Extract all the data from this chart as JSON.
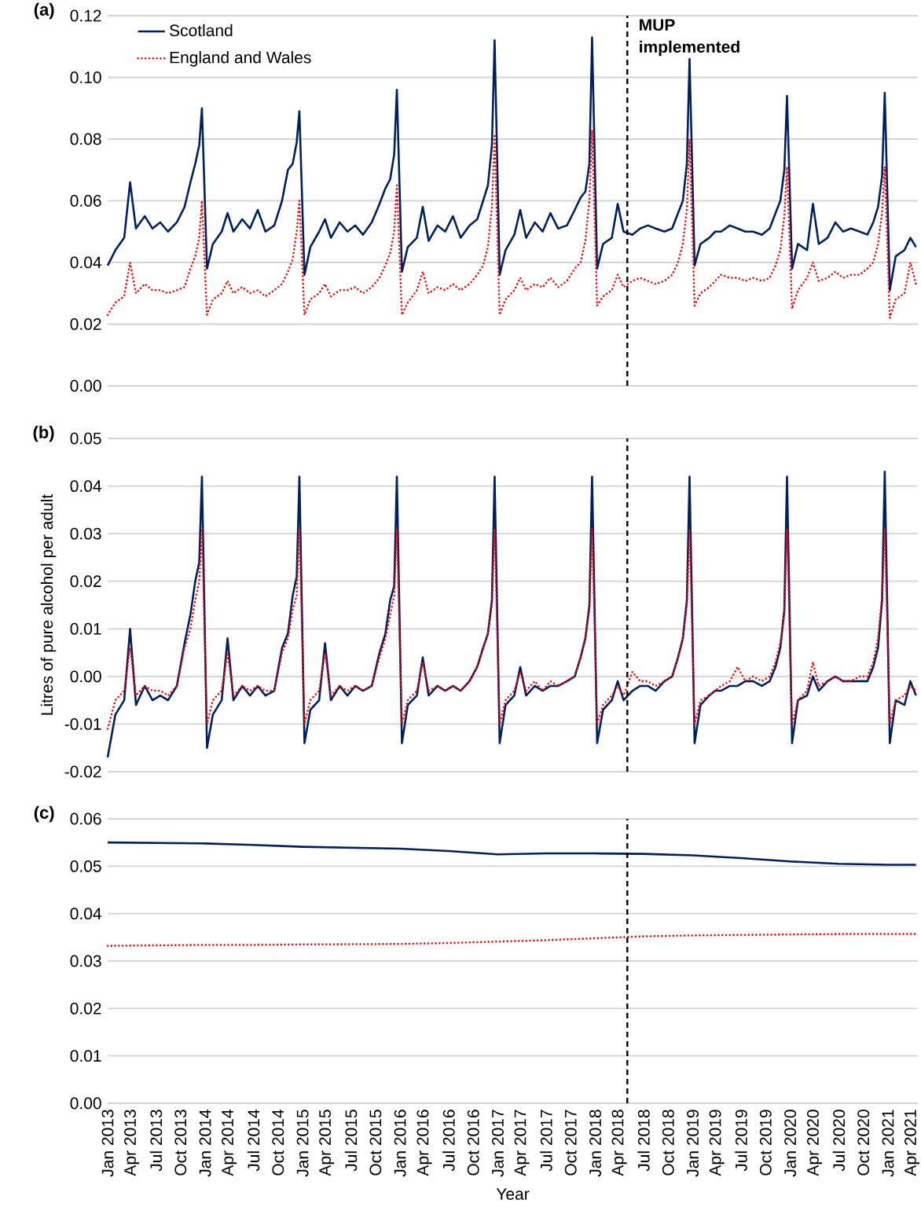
{
  "chart_data": [
    {
      "type": "line",
      "title": "(a)",
      "legend": "top left",
      "grid": "y",
      "tick_labels": "y",
      "xlim": [
        "2013-01-01",
        "2021-04-23"
      ],
      "ylim": [
        0,
        0.12
      ],
      "yticks": [
        {
          "value": 0,
          "label": "0.00"
        },
        {
          "value": 0.02,
          "label": "0.02"
        },
        {
          "value": 0.04,
          "label": "0.04"
        },
        {
          "value": 0.06,
          "label": "0.06"
        },
        {
          "value": 0.08,
          "label": "0.08"
        },
        {
          "value": 0.1,
          "label": "0.10"
        },
        {
          "value": 0.12,
          "label": "0.12"
        }
      ],
      "ref_lines": [
        {
          "axis": "x",
          "value": "2018-05-01",
          "label": "MUP implemented",
          "color": "#000000",
          "line_style": "dashed"
        }
      ],
      "x": [
        "2013-01-01",
        "2013-01-30",
        "2013-03-04",
        "2013-03-26",
        "2013-04-17",
        "2013-05-20",
        "2013-06-18",
        "2013-07-17",
        "2013-08-15",
        "2013-09-17",
        "2013-10-16",
        "2013-11-07",
        "2013-11-25",
        "2013-12-10",
        "2013-12-20",
        "2014-01-08",
        "2014-01-30",
        "2014-03-04",
        "2014-03-26",
        "2014-04-17",
        "2014-05-20",
        "2014-06-18",
        "2014-07-17",
        "2014-08-15",
        "2014-09-17",
        "2014-10-16",
        "2014-11-07",
        "2014-11-25",
        "2014-12-10",
        "2014-12-20",
        "2015-01-08",
        "2015-01-30",
        "2015-03-04",
        "2015-03-26",
        "2015-04-17",
        "2015-05-20",
        "2015-06-18",
        "2015-07-17",
        "2015-08-15",
        "2015-09-17",
        "2015-10-16",
        "2015-11-07",
        "2015-11-25",
        "2015-12-10",
        "2015-12-20",
        "2016-01-08",
        "2016-01-30",
        "2016-03-04",
        "2016-03-26",
        "2016-04-17",
        "2016-05-20",
        "2016-06-18",
        "2016-07-17",
        "2016-08-15",
        "2016-09-17",
        "2016-10-16",
        "2016-11-07",
        "2016-11-25",
        "2016-12-10",
        "2016-12-20",
        "2017-01-08",
        "2017-01-30",
        "2017-03-04",
        "2017-03-26",
        "2017-04-17",
        "2017-05-20",
        "2017-06-18",
        "2017-07-17",
        "2017-08-15",
        "2017-09-17",
        "2017-10-16",
        "2017-11-07",
        "2017-11-25",
        "2017-12-10",
        "2017-12-20",
        "2018-01-08",
        "2018-01-30",
        "2018-03-04",
        "2018-03-26",
        "2018-04-17",
        "2018-05-20",
        "2018-06-18",
        "2018-07-17",
        "2018-08-15",
        "2018-09-17",
        "2018-10-16",
        "2018-11-07",
        "2018-11-25",
        "2018-12-10",
        "2018-12-20",
        "2019-01-08",
        "2019-01-30",
        "2019-03-04",
        "2019-03-26",
        "2019-04-17",
        "2019-05-20",
        "2019-06-18",
        "2019-07-17",
        "2019-08-15",
        "2019-09-17",
        "2019-10-16",
        "2019-11-07",
        "2019-11-25",
        "2019-12-10",
        "2019-12-20",
        "2020-01-08",
        "2020-01-30",
        "2020-03-04",
        "2020-03-26",
        "2020-04-17",
        "2020-05-20",
        "2020-06-18",
        "2020-07-17",
        "2020-08-15",
        "2020-09-17",
        "2020-10-16",
        "2020-11-07",
        "2020-11-25",
        "2020-12-10",
        "2020-12-20",
        "2021-01-08",
        "2021-01-30",
        "2021-03-04",
        "2021-03-26",
        "2021-04-16"
      ],
      "series": [
        {
          "name": "Scotland",
          "color": "#002060",
          "line_style": "solid",
          "values": [
            0.039,
            0.044,
            0.048,
            0.066,
            0.051,
            0.055,
            0.051,
            0.053,
            0.05,
            0.053,
            0.058,
            0.066,
            0.072,
            0.078,
            0.09,
            0.038,
            0.046,
            0.05,
            0.056,
            0.05,
            0.054,
            0.051,
            0.057,
            0.05,
            0.052,
            0.06,
            0.07,
            0.072,
            0.079,
            0.089,
            0.036,
            0.045,
            0.05,
            0.054,
            0.048,
            0.053,
            0.05,
            0.052,
            0.049,
            0.053,
            0.059,
            0.064,
            0.067,
            0.075,
            0.096,
            0.037,
            0.045,
            0.048,
            0.058,
            0.047,
            0.052,
            0.05,
            0.055,
            0.048,
            0.052,
            0.054,
            0.06,
            0.065,
            0.078,
            0.112,
            0.036,
            0.044,
            0.049,
            0.057,
            0.048,
            0.053,
            0.05,
            0.056,
            0.051,
            0.052,
            0.057,
            0.061,
            0.063,
            0.072,
            0.113,
            0.038,
            0.046,
            0.048,
            0.059,
            0.05,
            0.049,
            0.051,
            0.052,
            0.051,
            0.05,
            0.051,
            0.056,
            0.06,
            0.072,
            0.106,
            0.039,
            0.046,
            0.048,
            0.05,
            0.05,
            0.052,
            0.051,
            0.05,
            0.05,
            0.049,
            0.051,
            0.056,
            0.06,
            0.07,
            0.094,
            0.038,
            0.046,
            0.044,
            0.059,
            0.046,
            0.048,
            0.053,
            0.05,
            0.051,
            0.05,
            0.049,
            0.053,
            0.058,
            0.068,
            0.095,
            0.031,
            0.042,
            0.044,
            0.048,
            0.045
          ]
        },
        {
          "name": "England and Wales",
          "color": "#ff0000",
          "line_style": "dotted",
          "values": [
            0.023,
            0.027,
            0.029,
            0.04,
            0.03,
            0.033,
            0.031,
            0.031,
            0.03,
            0.031,
            0.032,
            0.038,
            0.042,
            0.048,
            0.06,
            0.023,
            0.028,
            0.03,
            0.034,
            0.03,
            0.032,
            0.03,
            0.031,
            0.029,
            0.031,
            0.033,
            0.037,
            0.041,
            0.05,
            0.06,
            0.023,
            0.028,
            0.03,
            0.033,
            0.029,
            0.031,
            0.031,
            0.032,
            0.03,
            0.032,
            0.035,
            0.039,
            0.043,
            0.05,
            0.065,
            0.023,
            0.027,
            0.031,
            0.037,
            0.03,
            0.032,
            0.031,
            0.033,
            0.031,
            0.033,
            0.036,
            0.039,
            0.045,
            0.058,
            0.081,
            0.023,
            0.028,
            0.031,
            0.035,
            0.031,
            0.033,
            0.032,
            0.035,
            0.032,
            0.034,
            0.038,
            0.04,
            0.047,
            0.06,
            0.083,
            0.026,
            0.029,
            0.031,
            0.036,
            0.032,
            0.034,
            0.035,
            0.034,
            0.033,
            0.034,
            0.036,
            0.04,
            0.046,
            0.057,
            0.08,
            0.026,
            0.03,
            0.032,
            0.034,
            0.036,
            0.035,
            0.035,
            0.034,
            0.035,
            0.034,
            0.035,
            0.039,
            0.044,
            0.055,
            0.071,
            0.025,
            0.031,
            0.035,
            0.04,
            0.034,
            0.035,
            0.037,
            0.035,
            0.036,
            0.036,
            0.038,
            0.04,
            0.046,
            0.056,
            0.071,
            0.022,
            0.028,
            0.03,
            0.04,
            0.033
          ]
        }
      ]
    },
    {
      "type": "line",
      "title": "(b)",
      "ylabel": "Litres of pure alcohol per adult",
      "grid": "y",
      "tick_labels": "y",
      "xlim": [
        "2013-01-01",
        "2021-04-23"
      ],
      "ylim": [
        -0.02,
        0.05
      ],
      "yticks": [
        {
          "value": -0.02,
          "label": "-0.02"
        },
        {
          "value": -0.01,
          "label": "-0.01"
        },
        {
          "value": 0,
          "label": "0.00"
        },
        {
          "value": 0.01,
          "label": "0.01"
        },
        {
          "value": 0.02,
          "label": "0.02"
        },
        {
          "value": 0.03,
          "label": "0.03"
        },
        {
          "value": 0.04,
          "label": "0.04"
        },
        {
          "value": 0.05,
          "label": "0.05"
        }
      ],
      "ref_lines": [
        {
          "axis": "x",
          "value": "2018-05-01",
          "color": "#000000",
          "line_style": "dashed"
        }
      ],
      "x": [
        "2013-01-01",
        "2013-01-30",
        "2013-03-04",
        "2013-03-26",
        "2013-04-17",
        "2013-05-20",
        "2013-06-18",
        "2013-07-17",
        "2013-08-15",
        "2013-09-17",
        "2013-10-16",
        "2013-11-07",
        "2013-11-25",
        "2013-12-10",
        "2013-12-20",
        "2014-01-08",
        "2014-01-30",
        "2014-03-04",
        "2014-03-26",
        "2014-04-17",
        "2014-05-20",
        "2014-06-18",
        "2014-07-17",
        "2014-08-15",
        "2014-09-17",
        "2014-10-16",
        "2014-11-07",
        "2014-11-25",
        "2014-12-10",
        "2014-12-20",
        "2015-01-08",
        "2015-01-30",
        "2015-03-04",
        "2015-03-26",
        "2015-04-17",
        "2015-05-20",
        "2015-06-18",
        "2015-07-17",
        "2015-08-15",
        "2015-09-17",
        "2015-10-16",
        "2015-11-07",
        "2015-11-25",
        "2015-12-10",
        "2015-12-20",
        "2016-01-08",
        "2016-01-30",
        "2016-03-04",
        "2016-03-26",
        "2016-04-17",
        "2016-05-20",
        "2016-06-18",
        "2016-07-17",
        "2016-08-15",
        "2016-09-17",
        "2016-10-16",
        "2016-11-07",
        "2016-11-25",
        "2016-12-10",
        "2016-12-20",
        "2017-01-08",
        "2017-01-30",
        "2017-03-04",
        "2017-03-26",
        "2017-04-17",
        "2017-05-20",
        "2017-06-18",
        "2017-07-17",
        "2017-08-15",
        "2017-09-17",
        "2017-10-16",
        "2017-11-07",
        "2017-11-25",
        "2017-12-10",
        "2017-12-20",
        "2018-01-08",
        "2018-01-30",
        "2018-03-04",
        "2018-03-26",
        "2018-04-17",
        "2018-05-20",
        "2018-06-18",
        "2018-07-17",
        "2018-08-15",
        "2018-09-17",
        "2018-10-16",
        "2018-11-07",
        "2018-11-25",
        "2018-12-10",
        "2018-12-20",
        "2019-01-08",
        "2019-01-30",
        "2019-03-04",
        "2019-03-26",
        "2019-04-17",
        "2019-05-20",
        "2019-06-18",
        "2019-07-17",
        "2019-08-15",
        "2019-09-17",
        "2019-10-16",
        "2019-11-07",
        "2019-11-25",
        "2019-12-10",
        "2019-12-20",
        "2020-01-08",
        "2020-01-30",
        "2020-03-04",
        "2020-03-26",
        "2020-04-17",
        "2020-05-20",
        "2020-06-18",
        "2020-07-17",
        "2020-08-15",
        "2020-09-17",
        "2020-10-16",
        "2020-11-07",
        "2020-11-25",
        "2020-12-10",
        "2020-12-20",
        "2021-01-08",
        "2021-01-30",
        "2021-03-04",
        "2021-03-26",
        "2021-04-16"
      ],
      "series": [
        {
          "color": "#002060",
          "line_style": "solid",
          "values": [
            -0.017,
            -0.008,
            -0.005,
            0.01,
            -0.006,
            -0.002,
            -0.005,
            -0.004,
            -0.005,
            -0.002,
            0.007,
            0.013,
            0.02,
            0.024,
            0.042,
            -0.015,
            -0.008,
            -0.005,
            0.008,
            -0.005,
            -0.002,
            -0.004,
            -0.002,
            -0.004,
            -0.003,
            0.006,
            0.009,
            0.017,
            0.021,
            0.042,
            -0.014,
            -0.007,
            -0.005,
            0.007,
            -0.005,
            -0.002,
            -0.004,
            -0.002,
            -0.003,
            -0.002,
            0.005,
            0.009,
            0.016,
            0.019,
            0.042,
            -0.014,
            -0.006,
            -0.004,
            0.004,
            -0.004,
            -0.002,
            -0.003,
            -0.002,
            -0.003,
            -0.001,
            0.002,
            0.006,
            0.009,
            0.016,
            0.042,
            -0.014,
            -0.006,
            -0.004,
            0.002,
            -0.004,
            -0.002,
            -0.003,
            -0.002,
            -0.002,
            -0.001,
            0.0,
            0.004,
            0.008,
            0.015,
            0.042,
            -0.014,
            -0.007,
            -0.005,
            -0.001,
            -0.005,
            -0.003,
            -0.002,
            -0.002,
            -0.003,
            -0.001,
            0.0,
            0.004,
            0.008,
            0.016,
            0.042,
            -0.014,
            -0.006,
            -0.004,
            -0.003,
            -0.003,
            -0.002,
            -0.002,
            -0.001,
            -0.001,
            -0.002,
            -0.001,
            0.002,
            0.006,
            0.014,
            0.042,
            -0.014,
            -0.005,
            -0.004,
            0.0,
            -0.003,
            -0.001,
            0.0,
            -0.001,
            -0.001,
            -0.001,
            -0.001,
            0.002,
            0.006,
            0.016,
            0.043,
            -0.014,
            -0.005,
            -0.006,
            -0.001,
            -0.004
          ]
        },
        {
          "color": "#ff0000",
          "line_style": "dotted",
          "values": [
            -0.011,
            -0.005,
            -0.003,
            0.006,
            -0.004,
            -0.002,
            -0.003,
            -0.003,
            -0.004,
            -0.002,
            0.006,
            0.01,
            0.016,
            0.02,
            0.031,
            -0.01,
            -0.005,
            -0.003,
            0.005,
            -0.004,
            -0.002,
            -0.003,
            -0.002,
            -0.003,
            -0.003,
            0.005,
            0.008,
            0.014,
            0.017,
            0.031,
            -0.01,
            -0.005,
            -0.003,
            0.005,
            -0.004,
            -0.002,
            -0.003,
            -0.002,
            -0.003,
            -0.002,
            0.004,
            0.008,
            0.013,
            0.017,
            0.031,
            -0.01,
            -0.005,
            -0.003,
            0.003,
            -0.003,
            -0.002,
            -0.003,
            -0.002,
            -0.003,
            -0.001,
            0.002,
            0.006,
            0.009,
            0.015,
            0.031,
            -0.01,
            -0.005,
            -0.003,
            0.001,
            -0.003,
            -0.001,
            -0.003,
            -0.001,
            -0.002,
            -0.001,
            0.0,
            0.004,
            0.008,
            0.014,
            0.031,
            -0.01,
            -0.006,
            -0.004,
            -0.002,
            -0.004,
            0.001,
            -0.001,
            -0.001,
            -0.002,
            -0.001,
            0.0,
            0.004,
            0.008,
            0.015,
            0.031,
            -0.01,
            -0.005,
            -0.004,
            -0.003,
            -0.002,
            -0.001,
            0.002,
            -0.001,
            0.0,
            -0.001,
            0.0,
            0.003,
            0.007,
            0.013,
            0.031,
            -0.01,
            -0.005,
            -0.003,
            0.003,
            -0.002,
            -0.001,
            0.0,
            -0.001,
            -0.001,
            0.0,
            0.0,
            0.003,
            0.008,
            0.017,
            0.031,
            -0.01,
            -0.005,
            -0.004,
            -0.002,
            -0.003
          ]
        }
      ]
    },
    {
      "type": "line",
      "title": "(c)",
      "xlabel": "Year",
      "grid": "y",
      "xlim": [
        "2013-01-01",
        "2021-04-23"
      ],
      "ylim": [
        0,
        0.06
      ],
      "xticks": [
        {
          "value": "2013-01-01",
          "label": "Jan 2013"
        },
        {
          "value": "2013-04-01",
          "label": "Apr 2013"
        },
        {
          "value": "2013-07-01",
          "label": "Jul 2013"
        },
        {
          "value": "2013-10-01",
          "label": "Oct 2013"
        },
        {
          "value": "2014-01-01",
          "label": "Jan 2014"
        },
        {
          "value": "2014-04-01",
          "label": "Apr 2014"
        },
        {
          "value": "2014-07-01",
          "label": "Jul 2014"
        },
        {
          "value": "2014-10-01",
          "label": "Oct 2014"
        },
        {
          "value": "2015-01-01",
          "label": "Jan 2015"
        },
        {
          "value": "2015-04-01",
          "label": "Apr 2015"
        },
        {
          "value": "2015-07-01",
          "label": "Jul 2015"
        },
        {
          "value": "2015-10-01",
          "label": "Oct 2015"
        },
        {
          "value": "2016-01-01",
          "label": "Jan 2016"
        },
        {
          "value": "2016-04-01",
          "label": "Apr 2016"
        },
        {
          "value": "2016-07-01",
          "label": "Jul 2016"
        },
        {
          "value": "2016-10-01",
          "label": "Oct 2016"
        },
        {
          "value": "2017-01-01",
          "label": "Jan 2017"
        },
        {
          "value": "2017-04-01",
          "label": "Apr 2017"
        },
        {
          "value": "2017-07-01",
          "label": "Jul 2017"
        },
        {
          "value": "2017-10-01",
          "label": "Oct 2017"
        },
        {
          "value": "2018-01-01",
          "label": "Jan 2018"
        },
        {
          "value": "2018-04-01",
          "label": "Apr 2018"
        },
        {
          "value": "2018-07-01",
          "label": "Jul 2018"
        },
        {
          "value": "2018-10-01",
          "label": "Oct 2018"
        },
        {
          "value": "2019-01-01",
          "label": "Jan 2019"
        },
        {
          "value": "2019-04-01",
          "label": "Apr 2019"
        },
        {
          "value": "2019-07-01",
          "label": "Jul 2019"
        },
        {
          "value": "2019-10-01",
          "label": "Oct 2019"
        },
        {
          "value": "2020-01-01",
          "label": "Jan 2020"
        },
        {
          "value": "2020-04-01",
          "label": "Apr 2020"
        },
        {
          "value": "2020-07-01",
          "label": "Jul 2020"
        },
        {
          "value": "2020-10-01",
          "label": "Oct 2020"
        },
        {
          "value": "2021-01-01",
          "label": "Jan 2021"
        },
        {
          "value": "2021-04-01",
          "label": "Apr 2021"
        }
      ],
      "yticks": [
        {
          "value": 0,
          "label": "0.00"
        },
        {
          "value": 0.01,
          "label": "0.01"
        },
        {
          "value": 0.02,
          "label": "0.02"
        },
        {
          "value": 0.03,
          "label": "0.03"
        },
        {
          "value": 0.04,
          "label": "0.04"
        },
        {
          "value": 0.05,
          "label": "0.05"
        },
        {
          "value": 0.06,
          "label": "0.06"
        }
      ],
      "ref_lines": [
        {
          "axis": "x",
          "value": "2018-05-01",
          "color": "#000000",
          "line_style": "dashed"
        }
      ],
      "x": [
        "2013-01-01",
        "2014-01-01",
        "2014-07-01",
        "2015-01-01",
        "2016-01-01",
        "2016-07-01",
        "2017-01-01",
        "2017-07-01",
        "2018-01-01",
        "2018-07-01",
        "2019-01-01",
        "2019-07-01",
        "2020-01-01",
        "2020-07-01",
        "2021-01-01",
        "2021-04-16"
      ],
      "series": [
        {
          "color": "#002060",
          "line_style": "solid",
          "values": [
            0.055,
            0.0548,
            0.0545,
            0.0541,
            0.0537,
            0.0532,
            0.0525,
            0.0527,
            0.0527,
            0.0526,
            0.0523,
            0.0517,
            0.051,
            0.0505,
            0.0503,
            0.0503
          ]
        },
        {
          "color": "#ff0000",
          "line_style": "dotted",
          "values": [
            0.0332,
            0.0334,
            0.0334,
            0.0335,
            0.0336,
            0.0338,
            0.0341,
            0.0344,
            0.0348,
            0.0352,
            0.0354,
            0.0355,
            0.0356,
            0.0357,
            0.0357,
            0.0357
          ]
        }
      ]
    }
  ]
}
